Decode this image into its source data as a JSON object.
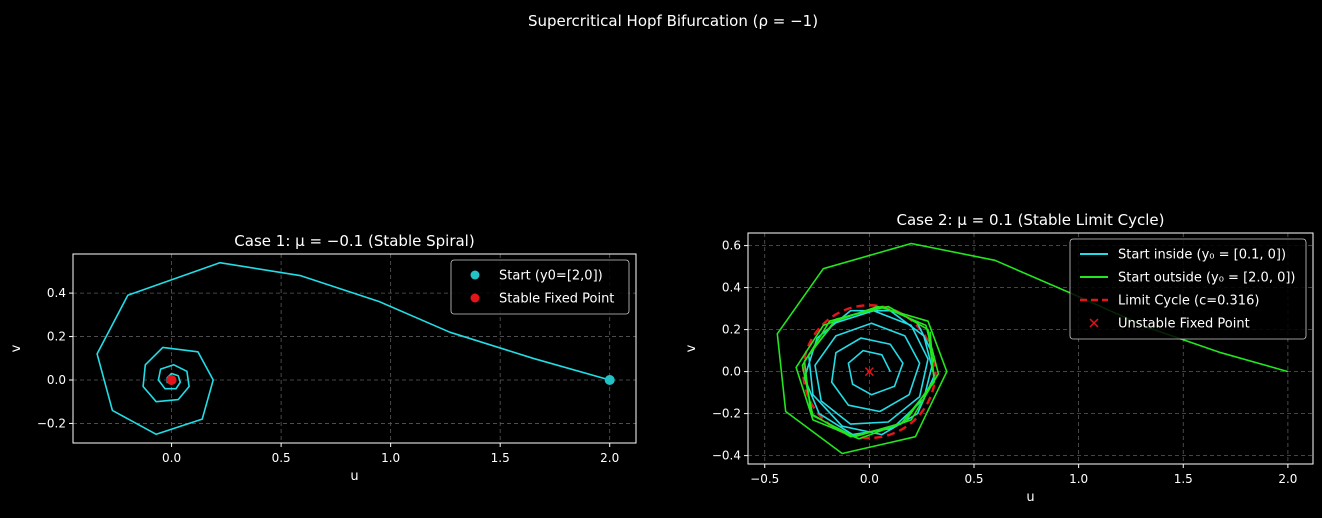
{
  "figure_title": "Supercritical Hopf Bifurcation (ρ = −1)",
  "colors": {
    "cyan": "#22dde6",
    "green": "#22e61e",
    "red": "#e3141a",
    "grid": "#5a5a5a",
    "axis": "#ffffff",
    "bg": "#000000"
  },
  "chart_data": [
    {
      "type": "line",
      "title": "Case 1: μ = −0.1 (Stable Spiral)",
      "xlabel": "u",
      "ylabel": "v",
      "xlim": [
        -0.45,
        2.12
      ],
      "ylim": [
        -0.29,
        0.58
      ],
      "xticks": [
        0.0,
        0.5,
        1.0,
        1.5,
        2.0
      ],
      "xtick_labels": [
        "0.0",
        "0.5",
        "1.0",
        "1.5",
        "2.0"
      ],
      "yticks": [
        -0.2,
        0.0,
        0.2,
        0.4
      ],
      "ytick_labels": [
        "−0.2",
        "0.0",
        "0.2",
        "0.4"
      ],
      "grid": true,
      "legend_position": "top-right",
      "series": [
        {
          "name": "trajectory",
          "color": "#22dde6",
          "x": [
            2.0,
            1.65,
            1.27,
            0.95,
            0.59,
            0.22,
            -0.2,
            -0.34,
            -0.27,
            -0.07,
            0.14,
            0.19,
            0.12,
            -0.04,
            -0.12,
            -0.13,
            -0.07,
            0.03,
            0.08,
            0.07,
            0.01,
            -0.05,
            -0.06,
            -0.03,
            0.02,
            0.04,
            0.03,
            0.0,
            -0.02,
            -0.02,
            0.0,
            0.01,
            0.0
          ],
          "y": [
            0.0,
            0.1,
            0.22,
            0.36,
            0.48,
            0.54,
            0.39,
            0.12,
            -0.14,
            -0.25,
            -0.18,
            0.0,
            0.13,
            0.15,
            0.07,
            -0.03,
            -0.1,
            -0.09,
            -0.03,
            0.04,
            0.07,
            0.05,
            0.0,
            -0.04,
            -0.04,
            -0.01,
            0.02,
            0.03,
            0.01,
            -0.01,
            -0.02,
            0.0,
            0.0
          ]
        }
      ],
      "markers": [
        {
          "name": "Start (y0=[2,0])",
          "x": 2.0,
          "y": 0.0,
          "color": "#22c2c6",
          "shape": "circle"
        },
        {
          "name": "Stable Fixed Point",
          "x": 0.0,
          "y": 0.0,
          "color": "#e3141a",
          "shape": "circle"
        }
      ],
      "legend": [
        {
          "label": "Start (y0=[2,0])",
          "kind": "dot",
          "color": "#22c2c6"
        },
        {
          "label": "Stable Fixed Point",
          "kind": "dot",
          "color": "#e3141a"
        }
      ]
    },
    {
      "type": "line",
      "title": "Case 2: μ = 0.1 (Stable Limit Cycle)",
      "xlabel": "u",
      "ylabel": "v",
      "xlim": [
        -0.58,
        2.12
      ],
      "ylim": [
        -0.44,
        0.66
      ],
      "xticks": [
        -0.5,
        0.0,
        0.5,
        1.0,
        1.5,
        2.0
      ],
      "xtick_labels": [
        "−0.5",
        "0.0",
        "0.5",
        "1.0",
        "1.5",
        "2.0"
      ],
      "yticks": [
        -0.4,
        -0.2,
        0.0,
        0.2,
        0.4,
        0.6
      ],
      "ytick_labels": [
        "−0.4",
        "−0.2",
        "0.0",
        "0.2",
        "0.4",
        "0.6"
      ],
      "grid": true,
      "legend_position": "top-right",
      "series": [
        {
          "name": "Start inside (y₀ = [0.1, 0])",
          "color": "#22dde6",
          "x": [
            0.1,
            0.06,
            -0.03,
            -0.1,
            -0.08,
            0.01,
            0.12,
            0.16,
            0.1,
            -0.04,
            -0.16,
            -0.18,
            -0.1,
            0.05,
            0.19,
            0.24,
            0.17,
            0.01,
            -0.16,
            -0.26,
            -0.23,
            -0.09,
            0.09,
            0.24,
            0.28,
            0.2,
            0.02,
            -0.17,
            -0.29,
            -0.27,
            -0.13,
            0.06,
            0.23,
            0.31,
            0.26,
            0.1,
            -0.09,
            -0.25,
            -0.31,
            -0.24,
            -0.08,
            0.11,
            0.26,
            0.31,
            0.23
          ],
          "y": [
            0.0,
            0.08,
            0.1,
            0.04,
            -0.06,
            -0.11,
            -0.07,
            0.04,
            0.13,
            0.16,
            0.09,
            -0.05,
            -0.16,
            -0.19,
            -0.11,
            0.04,
            0.17,
            0.23,
            0.17,
            0.03,
            -0.14,
            -0.25,
            -0.24,
            -0.12,
            0.06,
            0.22,
            0.29,
            0.23,
            0.08,
            -0.11,
            -0.26,
            -0.3,
            -0.2,
            -0.02,
            0.17,
            0.29,
            0.29,
            0.16,
            -0.03,
            -0.2,
            -0.3,
            -0.27,
            -0.13,
            0.07,
            0.23
          ]
        },
        {
          "name": "Start outside (y₀ = [2.0, 0])",
          "color": "#22e61e",
          "x": [
            2.0,
            1.68,
            1.33,
            0.97,
            0.6,
            0.2,
            -0.22,
            -0.44,
            -0.4,
            -0.13,
            0.22,
            0.37,
            0.28,
            0.04,
            -0.22,
            -0.35,
            -0.27,
            -0.05,
            0.2,
            0.33,
            0.27,
            0.06,
            -0.19,
            -0.32,
            -0.27,
            -0.07,
            0.17,
            0.31,
            0.28,
            0.09,
            -0.16,
            -0.31,
            -0.28,
            -0.09,
            0.15,
            0.31,
            0.29
          ],
          "y": [
            0.0,
            0.09,
            0.21,
            0.37,
            0.53,
            0.61,
            0.49,
            0.18,
            -0.19,
            -0.39,
            -0.31,
            -0.0,
            0.24,
            0.31,
            0.22,
            0.02,
            -0.23,
            -0.32,
            -0.23,
            -0.01,
            0.22,
            0.31,
            0.24,
            0.03,
            -0.21,
            -0.31,
            -0.24,
            -0.04,
            0.2,
            0.31,
            0.25,
            0.05,
            -0.2,
            -0.31,
            -0.25,
            -0.05,
            0.19
          ]
        }
      ],
      "limit_cycle": {
        "label": "Limit Cycle (c=0.316)",
        "radius": 0.316,
        "color": "#e3141a",
        "style": "dashed"
      },
      "markers": [
        {
          "name": "Unstable Fixed Point",
          "x": 0.0,
          "y": 0.0,
          "color": "#e3141a",
          "shape": "x"
        }
      ],
      "legend": [
        {
          "label": "Start inside (y₀ = [0.1, 0])",
          "kind": "line",
          "color": "#22dde6"
        },
        {
          "label": "Start outside (y₀ = [2.0, 0])",
          "kind": "line",
          "color": "#22e61e"
        },
        {
          "label": "Limit Cycle (c=0.316)",
          "kind": "dash",
          "color": "#e3141a"
        },
        {
          "label": "Unstable Fixed Point",
          "kind": "x",
          "color": "#e3141a"
        }
      ]
    }
  ]
}
